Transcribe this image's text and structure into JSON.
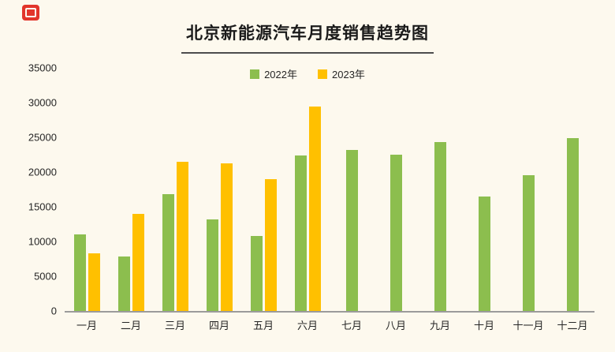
{
  "page": {
    "background_color": "#fdf9ee",
    "logo_color": "#e2352b"
  },
  "chart_data": {
    "type": "bar",
    "title": "北京新能源汽车月度销售趋势图",
    "categories": [
      "一月",
      "二月",
      "三月",
      "四月",
      "五月",
      "六月",
      "七月",
      "八月",
      "九月",
      "十月",
      "十一月",
      "十二月"
    ],
    "series": [
      {
        "name": "2022年",
        "color": "#8cbe4e",
        "values": [
          11000,
          7800,
          16800,
          13200,
          10800,
          22400,
          23200,
          22500,
          24300,
          16500,
          19500,
          24900
        ]
      },
      {
        "name": "2023年",
        "color": "#ffc000",
        "values": [
          8300,
          14000,
          21500,
          21200,
          19000,
          29400,
          null,
          null,
          null,
          null,
          null,
          null
        ]
      }
    ],
    "ylim": [
      0,
      35000
    ],
    "ytick_step": 5000,
    "y_ticks": [
      "0",
      "5000",
      "10000",
      "15000",
      "20000",
      "25000",
      "30000",
      "35000"
    ],
    "xlabel": "",
    "ylabel": "",
    "grid": false,
    "legend_position": "top-center"
  }
}
